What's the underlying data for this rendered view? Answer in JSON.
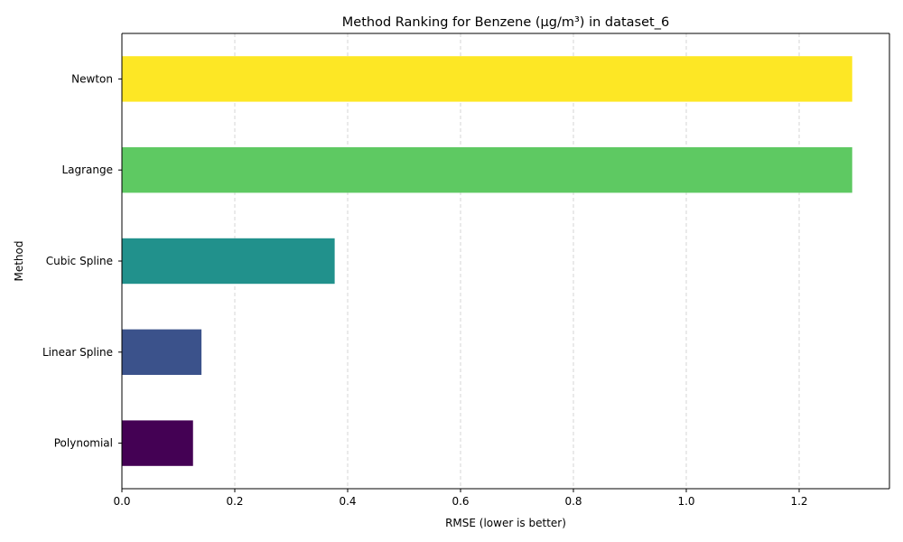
{
  "chart_data": {
    "type": "bar",
    "orientation": "horizontal",
    "title": "Method Ranking for Benzene (µg/m³) in dataset_6",
    "xlabel": "RMSE (lower is better)",
    "ylabel": "Method",
    "categories": [
      "Polynomial",
      "Linear Spline",
      "Cubic Spline",
      "Lagrange",
      "Newton"
    ],
    "values": [
      0.126,
      0.141,
      0.377,
      1.294,
      1.294
    ],
    "colors": [
      "#440154",
      "#3b528b",
      "#21918c",
      "#5ec962",
      "#fde725"
    ],
    "xlim": [
      0,
      1.36
    ],
    "xticks": [
      0.0,
      0.2,
      0.4,
      0.6,
      0.8,
      1.0,
      1.2
    ],
    "xtick_labels": [
      "0.0",
      "0.2",
      "0.4",
      "0.6",
      "0.8",
      "1.0",
      "1.2"
    ],
    "grid": "x-dashed",
    "legend": "none"
  }
}
